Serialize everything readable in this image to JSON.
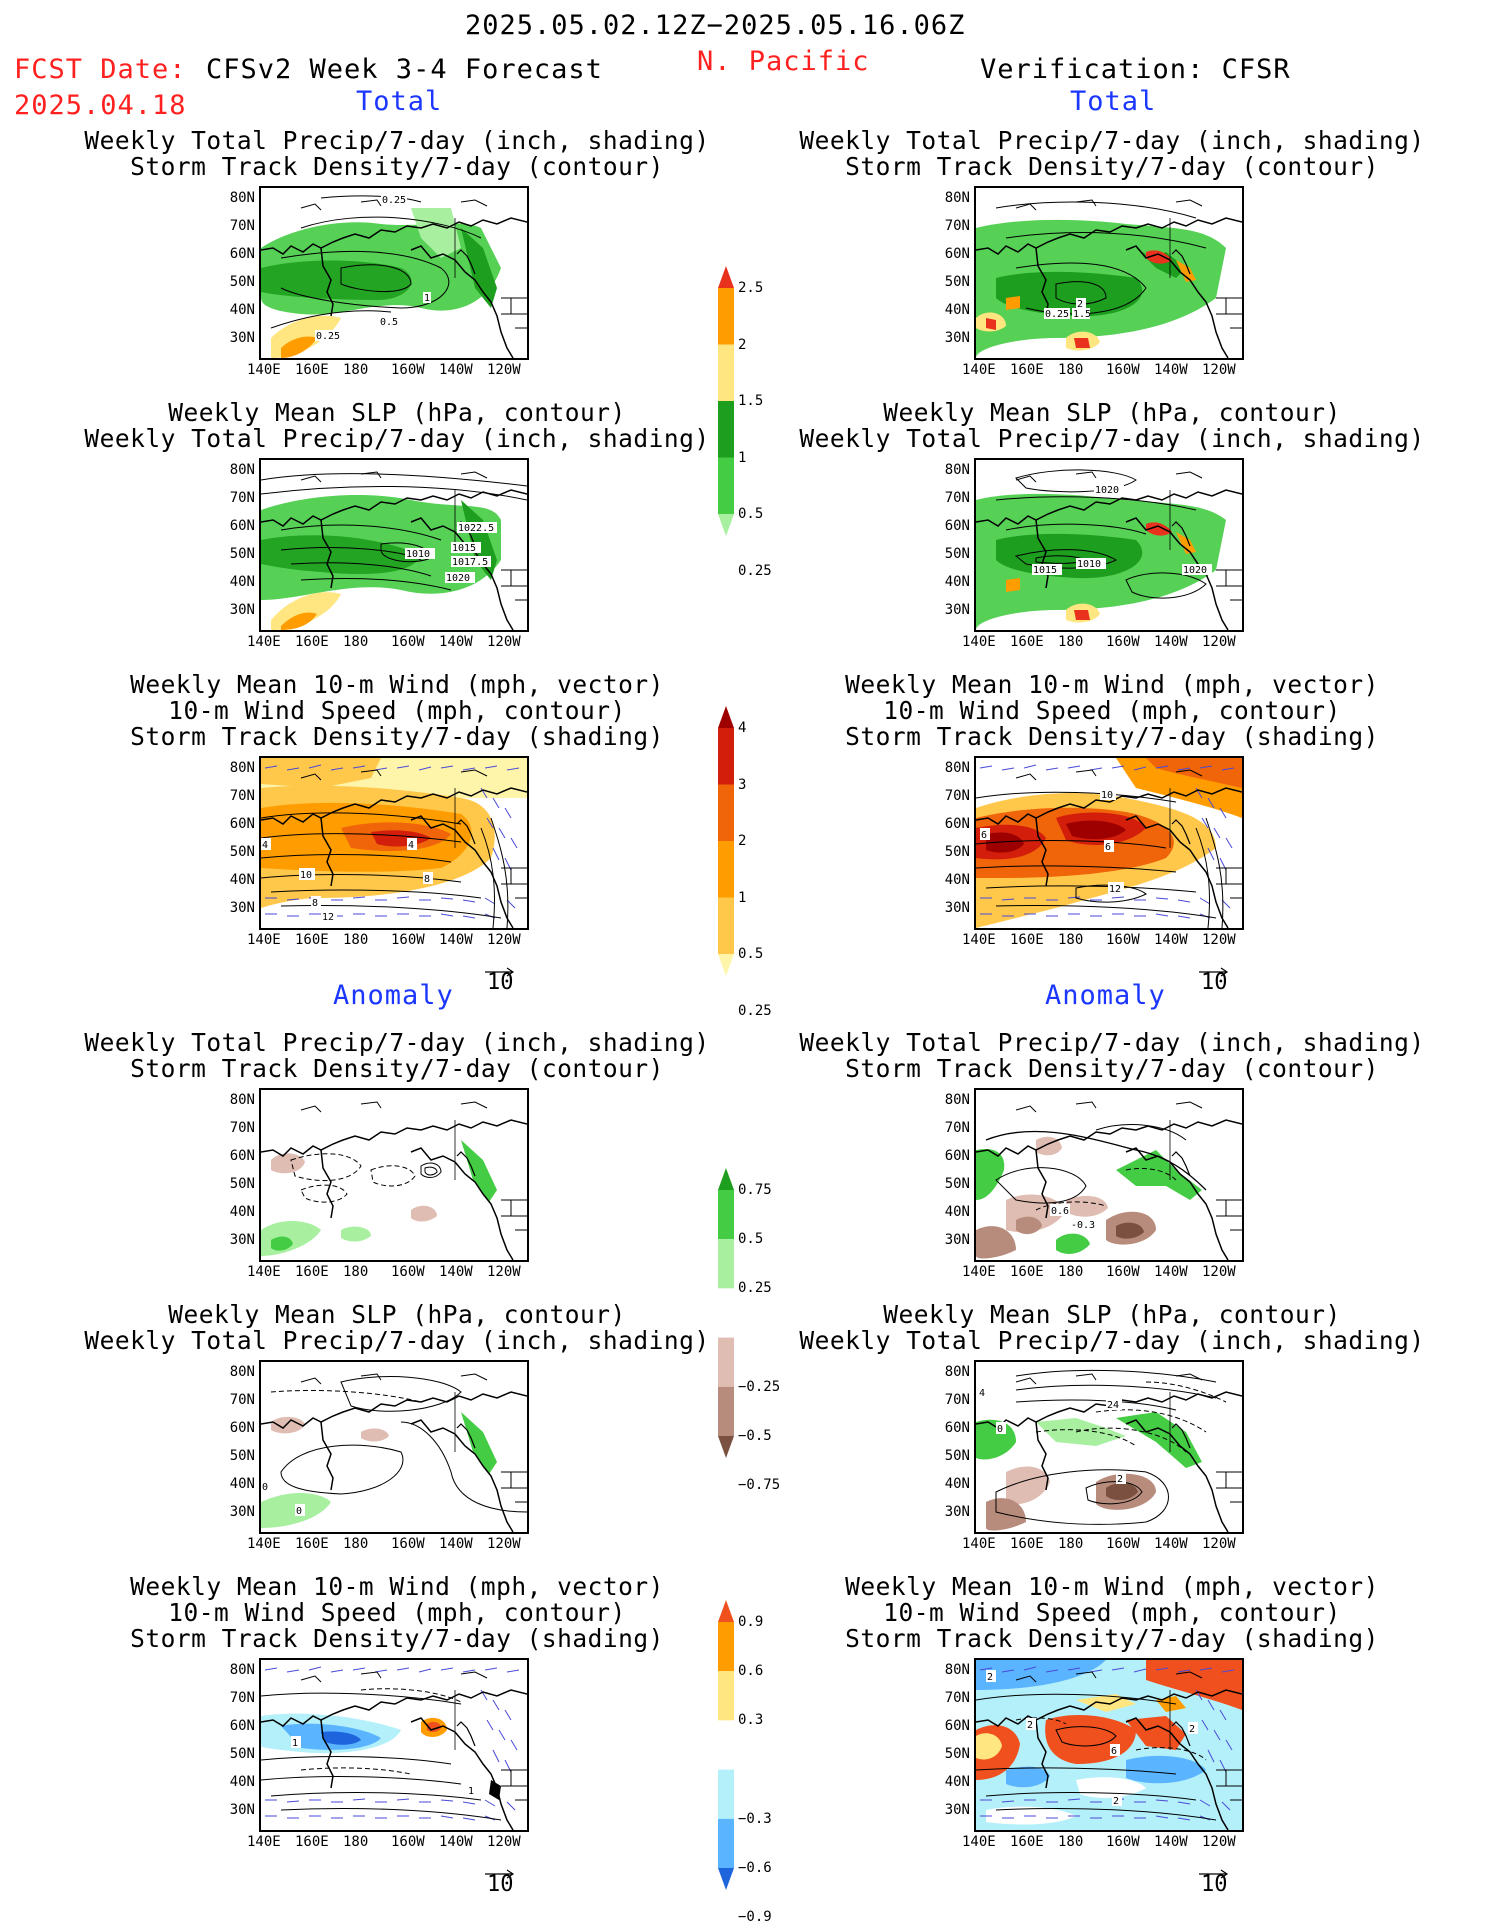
{
  "header": {
    "date_range": "2025.05.02.12Z−2025.05.16.06Z",
    "fcst_label": "FCST Date:",
    "fcst_date": "2025.04.18",
    "model_title": "CFSv2 Week 3-4 Forecast",
    "region": "N. Pacific",
    "verification": "Verification: CFSR"
  },
  "sections": {
    "total": "Total",
    "anomaly": "Anomaly"
  },
  "panel_titles": {
    "precip_storm": [
      "Weekly Total Precip/7-day (inch, shading)",
      "Storm Track Density/7-day (contour)"
    ],
    "slp_precip": [
      "Weekly Mean SLP (hPa, contour)",
      "Weekly Total Precip/7-day (inch, shading)"
    ],
    "wind_storm": [
      "Weekly Mean 10-m Wind (mph, vector)",
      "10-m Wind Speed (mph, contour)",
      "Storm Track Density/7-day (shading)"
    ]
  },
  "axes": {
    "lat_labels": [
      "80N",
      "70N",
      "60N",
      "50N",
      "40N",
      "30N"
    ],
    "lon_labels": [
      "140E",
      "160E",
      "180",
      "160W",
      "140W",
      "120W"
    ],
    "vector_ref": "10"
  },
  "contour_labels": {
    "fcst_total_precip": [
      "0.25",
      "1",
      "0.5",
      "0.25"
    ],
    "fcst_total_slp": [
      "1022.5",
      "1015",
      "1010",
      "1017.5",
      "1020"
    ],
    "fcst_total_wind": [
      "4",
      "4",
      "10",
      "8",
      "8",
      "12"
    ],
    "ver_total_precip": [
      "2",
      "0.25",
      "1.5"
    ],
    "ver_total_slp": [
      "1020",
      "1015",
      "1010",
      "1020"
    ],
    "ver_total_wind": [
      "10",
      "6",
      "6",
      "12"
    ],
    "fcst_anom_slp": [
      "0",
      "0"
    ],
    "fcst_anom_wind": [
      "1",
      "1"
    ],
    "ver_anom_precip": [
      "0.6",
      "-0.3"
    ],
    "ver_anom_slp": [
      "4",
      "24",
      "0",
      "2"
    ],
    "ver_anom_wind": [
      "2",
      "2",
      "6",
      "2",
      "2"
    ]
  },
  "colorbars": {
    "precip_total": {
      "labels": [
        "2.5",
        "2",
        "1.5",
        "1",
        "0.5",
        "0.25"
      ],
      "colors": [
        "#e8321e",
        "#ff9d00",
        "#ffe680",
        "#1e9e1e",
        "#44cc44",
        "#a8f0a0"
      ]
    },
    "storm_total": {
      "labels": [
        "4",
        "3",
        "2",
        "1",
        "0.5",
        "0.25"
      ],
      "colors": [
        "#9e0000",
        "#d21e0a",
        "#f0640a",
        "#ff9d00",
        "#ffc84b",
        "#fff5aa"
      ]
    },
    "precip_anom": {
      "labels": [
        "0.75",
        "0.5",
        "0.25",
        "−0.25",
        "−0.5",
        "−0.75"
      ],
      "colors": [
        "#1e9e1e",
        "#44cc44",
        "#a8f0a0",
        "#ffffff",
        "#e0bdb2",
        "#b88c7d",
        "#7a5040"
      ]
    },
    "storm_anom": {
      "labels": [
        "0.9",
        "0.6",
        "0.3",
        "−0.3",
        "−0.6",
        "−0.9"
      ],
      "colors": [
        "#f0501e",
        "#ff9d00",
        "#ffe680",
        "#ffffff",
        "#b4f0fa",
        "#5ab4ff",
        "#1e64dc"
      ]
    }
  }
}
